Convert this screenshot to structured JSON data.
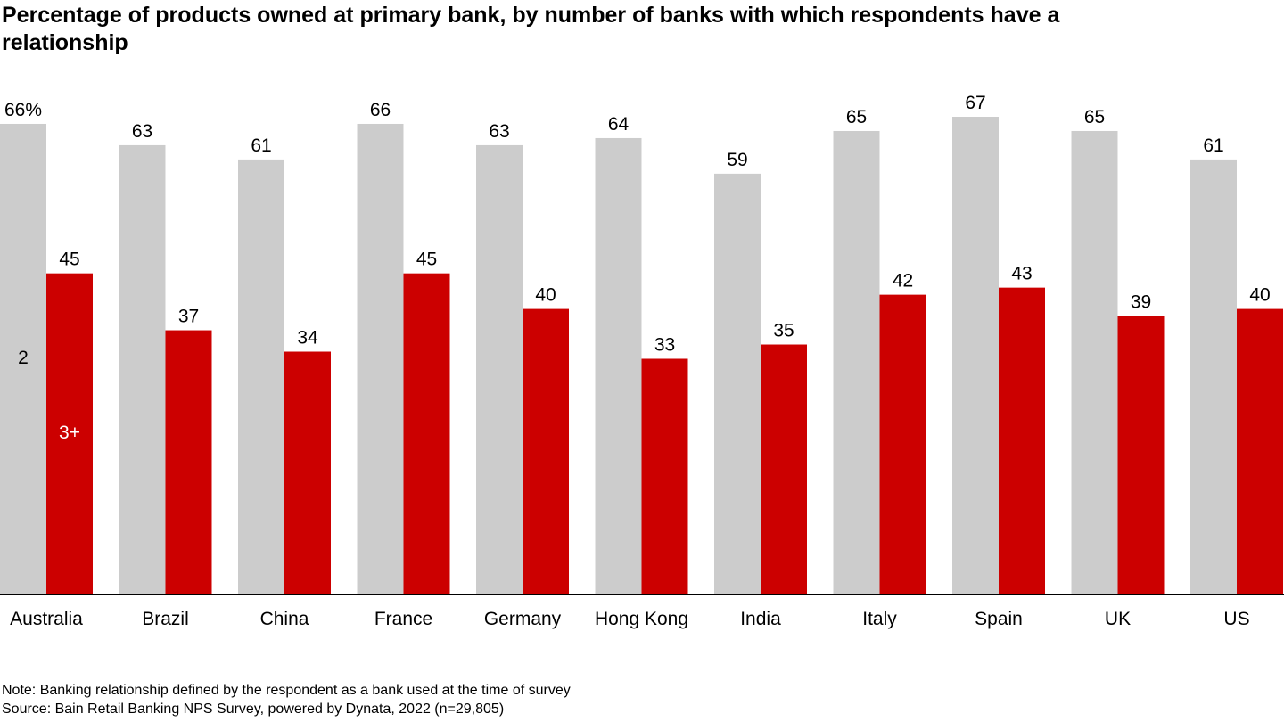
{
  "title": "Percentage of products owned at primary bank, by number of banks with which respondents have a relationship",
  "chart_data": {
    "type": "bar",
    "categories": [
      "Australia",
      "Brazil",
      "China",
      "France",
      "Germany",
      "Hong Kong",
      "India",
      "Italy",
      "Spain",
      "UK",
      "US"
    ],
    "series": [
      {
        "name": "2",
        "color": "#cccccc",
        "values": [
          66,
          63,
          61,
          66,
          63,
          64,
          59,
          65,
          67,
          65,
          61
        ]
      },
      {
        "name": "3+",
        "color": "#cc0000",
        "values": [
          45,
          37,
          34,
          45,
          40,
          33,
          35,
          42,
          43,
          39,
          40
        ]
      }
    ],
    "data_labels": {
      "2": [
        "66%",
        "63",
        "61",
        "66",
        "63",
        "64",
        "59",
        "65",
        "67",
        "65",
        "61"
      ],
      "3+": [
        "45",
        "37",
        "34",
        "45",
        "40",
        "33",
        "35",
        "42",
        "43",
        "39",
        "40"
      ]
    },
    "ylim": [
      0,
      67
    ],
    "grid": false,
    "legend_placement": "inside first group"
  },
  "notes": {
    "note": "Note: Banking relationship defined by the respondent as a bank used at the time of survey",
    "source": "Source: Bain Retail Banking NPS Survey, powered by Dynata, 2022 (n=29,805)"
  }
}
